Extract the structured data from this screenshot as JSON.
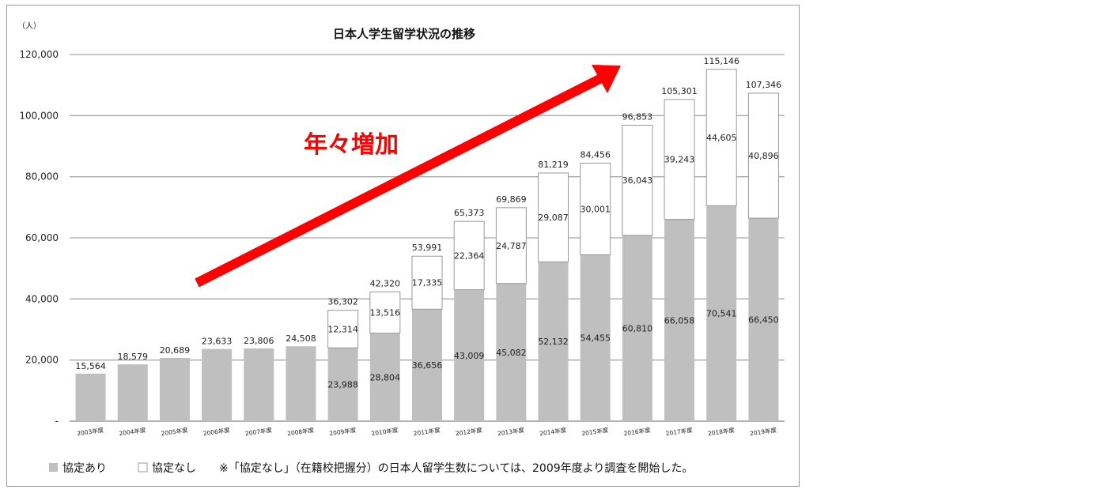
{
  "chart_data": {
    "type": "bar",
    "stacked": true,
    "title": "日本人学生留学状況の推移",
    "unit_label": "（人）",
    "categories": [
      "2003年度",
      "2004年度",
      "2005年度",
      "2006年度",
      "2007年度",
      "2008年度",
      "2009年度",
      "2010年度",
      "2011年度",
      "2012年度",
      "2013年度",
      "2014年度",
      "2015年度",
      "2016年度",
      "2017年度",
      "2018年度",
      "2019年度"
    ],
    "series": [
      {
        "name": "協定あり",
        "color": "#bfbfbf",
        "values": [
          15564,
          18579,
          20689,
          23633,
          23806,
          24508,
          23988,
          28804,
          36656,
          43009,
          45082,
          52132,
          54455,
          60810,
          66058,
          70541,
          66450
        ]
      },
      {
        "name": "協定なし",
        "color": "#ffffff",
        "values": [
          null,
          null,
          null,
          null,
          null,
          null,
          12314,
          13516,
          17335,
          22364,
          24787,
          29087,
          30001,
          36043,
          39243,
          44605,
          40896
        ]
      }
    ],
    "totals": [
      null,
      null,
      null,
      null,
      null,
      null,
      36302,
      42320,
      53991,
      65373,
      69869,
      81219,
      84456,
      96853,
      105301,
      115146,
      107346
    ],
    "ylim": [
      0,
      120000
    ],
    "yticks": [
      0,
      20000,
      40000,
      60000,
      80000,
      100000,
      120000
    ],
    "ytick_labels": [
      "-",
      "20,000",
      "40,000",
      "60,000",
      "80,000",
      "100,000",
      "120,000"
    ],
    "grid": true,
    "legend_position": "bottom-left",
    "legend_note": "※「協定なし」（在籍校把握分）の日本人留学生数については、2009年度より調査を開始した。",
    "annotation": {
      "text": "年々増加",
      "color": "#ff0000"
    }
  }
}
